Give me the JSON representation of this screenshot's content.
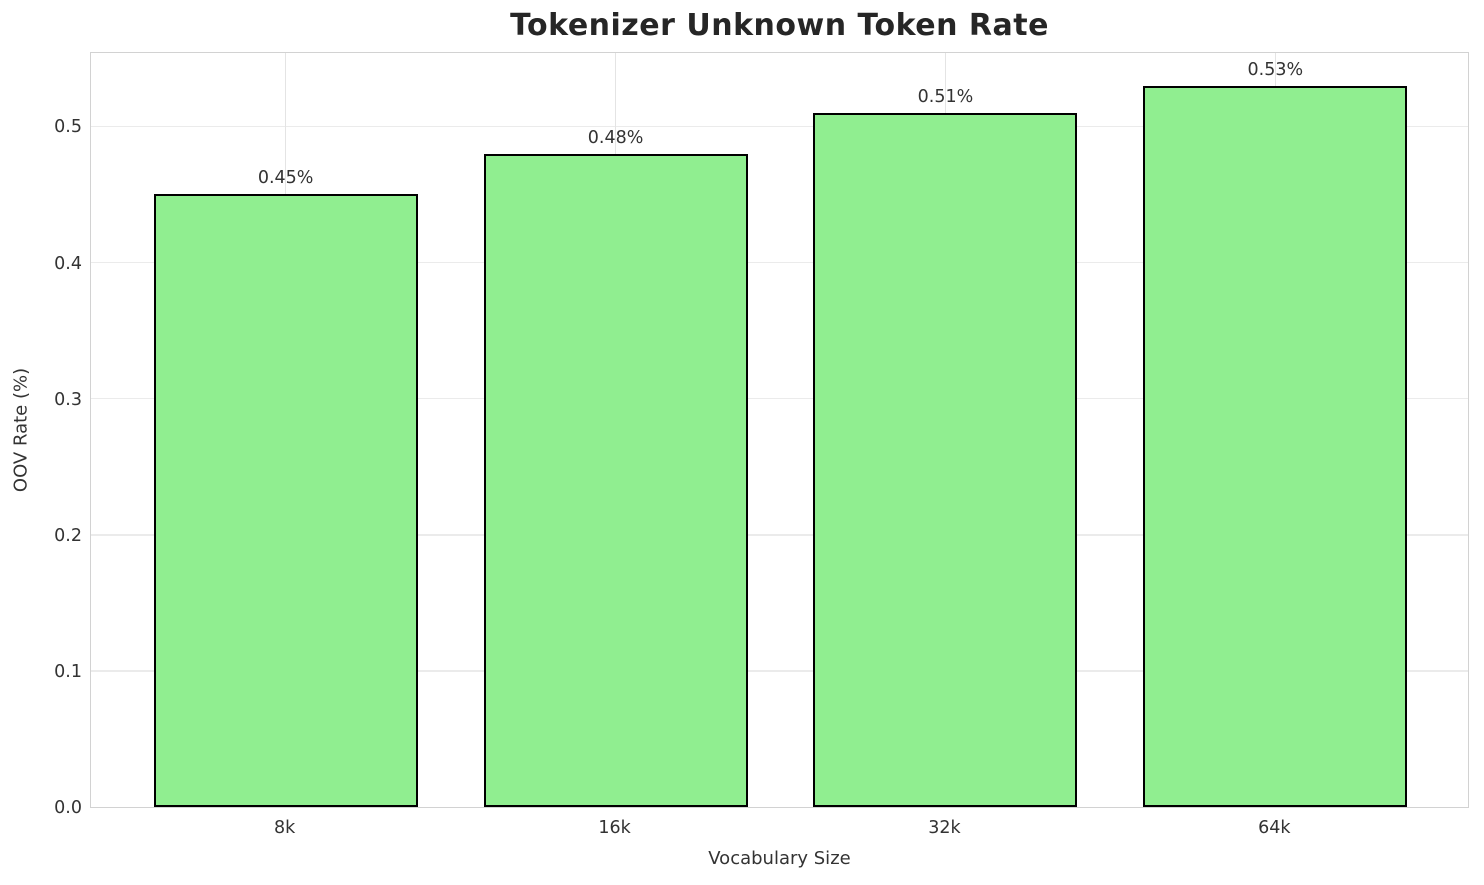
{
  "chart_data": {
    "type": "bar",
    "title": "Tokenizer Unknown Token Rate",
    "xlabel": "Vocabulary Size",
    "ylabel": "OOV Rate (%)",
    "categories": [
      "8k",
      "16k",
      "32k",
      "64k"
    ],
    "values": [
      0.45,
      0.48,
      0.51,
      0.53
    ],
    "bar_labels": [
      "0.45%",
      "0.48%",
      "0.51%",
      "0.53%"
    ],
    "yticks": [
      0.0,
      0.1,
      0.2,
      0.3,
      0.4,
      0.5
    ],
    "ytick_labels": [
      "0.0",
      "0.1",
      "0.2",
      "0.3",
      "0.4",
      "0.5"
    ],
    "ylim": [
      0,
      0.5554
    ],
    "grid": true,
    "legend_position": "none",
    "colors": {
      "bar_fill": "#90EE90",
      "bar_edge": "#000000",
      "gridline": "#ebebeb",
      "spine": "#d2d2d2",
      "title_text": "#262626",
      "tick_text": "#333333"
    }
  }
}
